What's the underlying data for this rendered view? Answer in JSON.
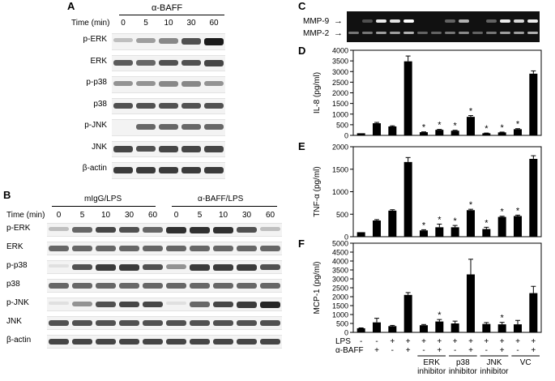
{
  "panelA": {
    "letter": "A",
    "condition": "α-BAFF",
    "time_label": "Time (min)",
    "times": [
      "0",
      "5",
      "10",
      "30",
      "60"
    ],
    "rows": [
      {
        "label": "p-ERK",
        "intensity": [
          0.2,
          0.35,
          0.45,
          0.7,
          0.95
        ]
      },
      {
        "label": "ERK",
        "intensity": [
          0.65,
          0.6,
          0.7,
          0.7,
          0.75
        ]
      },
      {
        "label": "p-p38",
        "intensity": [
          0.4,
          0.4,
          0.45,
          0.45,
          0.4
        ]
      },
      {
        "label": "p38",
        "intensity": [
          0.7,
          0.7,
          0.7,
          0.7,
          0.7
        ]
      },
      {
        "label": "p-JNK",
        "intensity": [
          0.0,
          0.6,
          0.6,
          0.6,
          0.6
        ]
      },
      {
        "label": "JNK",
        "intensity": [
          0.75,
          0.7,
          0.75,
          0.75,
          0.75
        ]
      },
      {
        "label": "β-actin",
        "intensity": [
          0.8,
          0.8,
          0.8,
          0.8,
          0.8
        ]
      }
    ]
  },
  "panelB": {
    "letter": "B",
    "group1": "mIgG/LPS",
    "group2": "α-BAFF/LPS",
    "time_label": "Time (min)",
    "times": [
      "0",
      "5",
      "10",
      "30",
      "60",
      "0",
      "5",
      "10",
      "30",
      "60"
    ],
    "rows": [
      {
        "label": "p-ERK",
        "intensity": [
          0.2,
          0.6,
          0.75,
          0.7,
          0.6,
          0.85,
          0.85,
          0.85,
          0.7,
          0.2
        ]
      },
      {
        "label": "ERK",
        "intensity": [
          0.6,
          0.6,
          0.6,
          0.6,
          0.6,
          0.6,
          0.6,
          0.6,
          0.6,
          0.6
        ]
      },
      {
        "label": "p-p38",
        "intensity": [
          0.05,
          0.7,
          0.8,
          0.8,
          0.7,
          0.4,
          0.8,
          0.8,
          0.8,
          0.7
        ]
      },
      {
        "label": "p38",
        "intensity": [
          0.6,
          0.6,
          0.6,
          0.6,
          0.6,
          0.6,
          0.6,
          0.6,
          0.6,
          0.6
        ]
      },
      {
        "label": "p-JNK",
        "intensity": [
          0.05,
          0.4,
          0.7,
          0.75,
          0.75,
          0.05,
          0.6,
          0.75,
          0.8,
          0.9
        ]
      },
      {
        "label": "JNK",
        "intensity": [
          0.7,
          0.7,
          0.7,
          0.7,
          0.7,
          0.7,
          0.7,
          0.7,
          0.7,
          0.7
        ]
      },
      {
        "label": "β-actin",
        "intensity": [
          0.75,
          0.75,
          0.75,
          0.75,
          0.75,
          0.75,
          0.75,
          0.75,
          0.75,
          0.75
        ]
      }
    ]
  },
  "panelC": {
    "letter": "C",
    "labels": [
      "MMP-9",
      "MMP-2"
    ],
    "mmp9_intensity": [
      0.0,
      0.1,
      0.9,
      0.85,
      1.0,
      0.0,
      0.0,
      0.2,
      0.6,
      0.0,
      0.2,
      0.9,
      0.8,
      0.9
    ],
    "mmp2_intensity": [
      0.3,
      0.3,
      0.5,
      0.5,
      0.6,
      0.2,
      0.2,
      0.3,
      0.4,
      0.2,
      0.3,
      0.5,
      0.5,
      0.6
    ]
  },
  "chart_data": [
    {
      "type": "bar",
      "letter": "D",
      "ylabel": "IL-8 (pg/ml)",
      "ylim": [
        0,
        4000
      ],
      "yticks": [
        0,
        500,
        1000,
        1500,
        2000,
        2500,
        3000,
        3500,
        4000
      ],
      "values": [
        100,
        570,
        420,
        3480,
        150,
        260,
        220,
        870,
        100,
        140,
        290,
        2900
      ],
      "errors": [
        0,
        40,
        30,
        250,
        15,
        20,
        20,
        60,
        10,
        15,
        25,
        130
      ],
      "significant": [
        false,
        false,
        false,
        false,
        true,
        true,
        true,
        true,
        true,
        true,
        true,
        false
      ]
    },
    {
      "type": "bar",
      "letter": "E",
      "ylabel": "TNF-α (pg/ml)",
      "ylim": [
        0,
        2000
      ],
      "yticks": [
        0,
        500,
        1000,
        1500,
        2000
      ],
      "values": [
        100,
        360,
        580,
        1660,
        140,
        210,
        210,
        590,
        170,
        440,
        460,
        1730
      ],
      "errors": [
        0,
        20,
        20,
        100,
        15,
        70,
        40,
        20,
        40,
        15,
        20,
        70
      ],
      "significant": [
        false,
        false,
        false,
        false,
        true,
        true,
        true,
        true,
        true,
        true,
        true,
        false
      ]
    },
    {
      "type": "bar",
      "letter": "F",
      "ylabel": "MCP-1 (pg/ml)",
      "ylim": [
        0,
        5000
      ],
      "yticks": [
        0,
        500,
        1000,
        1500,
        2000,
        2500,
        3000,
        3500,
        4000,
        4500,
        5000
      ],
      "values": [
        230,
        560,
        350,
        2100,
        400,
        610,
        500,
        3250,
        470,
        450,
        450,
        2200
      ],
      "errors": [
        20,
        230,
        40,
        130,
        40,
        110,
        130,
        850,
        80,
        110,
        220,
        380
      ],
      "significant": [
        false,
        false,
        false,
        false,
        false,
        true,
        false,
        false,
        false,
        true,
        false,
        false
      ],
      "treatment_rows": [
        {
          "label": "LPS",
          "marks": [
            "-",
            "-",
            "+",
            "+",
            "+",
            "+",
            "+",
            "+",
            "+",
            "+",
            "+",
            "+"
          ]
        },
        {
          "label": "α-BAFF",
          "marks": [
            "-",
            "+",
            "-",
            "+",
            "-",
            "+",
            "-",
            "+",
            "-",
            "+",
            "-",
            "+"
          ]
        }
      ],
      "groups": [
        {
          "line1": "ERK",
          "line2": "inhibitor",
          "from": 4,
          "to": 5
        },
        {
          "line1": "p38",
          "line2": "inhibitor",
          "from": 6,
          "to": 7
        },
        {
          "line1": "JNK",
          "line2": "inhibitor",
          "from": 8,
          "to": 9
        },
        {
          "line1": "VC",
          "line2": "",
          "from": 10,
          "to": 11
        }
      ]
    }
  ],
  "asterisk": "*"
}
